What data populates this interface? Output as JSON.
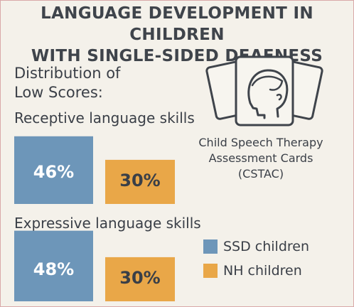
{
  "title_line1": "LANGUAGE DEVELOPMENT IN CHILDREN",
  "title_line2": "WITH SINGLE-SIDED DEAFNESS",
  "subtitle_line1": "Distribution of",
  "subtitle_line2": "Low Scores:",
  "card_caption_line1": "Child Speech Therapy",
  "card_caption_line2": "Assessment Cards",
  "card_caption_line3": "(CSTAC)",
  "colors": {
    "ssd": "#6d96b9",
    "nh": "#e9a748",
    "label_ssd": "#ffffff",
    "label_nh": "#3a3f47"
  },
  "chart_data": [
    {
      "type": "bar",
      "title": "Receptive language skills",
      "unit": "%",
      "series": [
        {
          "name": "SSD children",
          "value": 46,
          "label": "46%"
        },
        {
          "name": "NH children",
          "value": 30,
          "label": "30%"
        }
      ]
    },
    {
      "type": "bar",
      "title": "Expressive language skills",
      "unit": "%",
      "series": [
        {
          "name": "SSD children",
          "value": 48,
          "label": "48%"
        },
        {
          "name": "NH children",
          "value": 30,
          "label": "30%"
        }
      ]
    }
  ],
  "legend": [
    {
      "name": "SSD children"
    },
    {
      "name": "NH children"
    }
  ]
}
